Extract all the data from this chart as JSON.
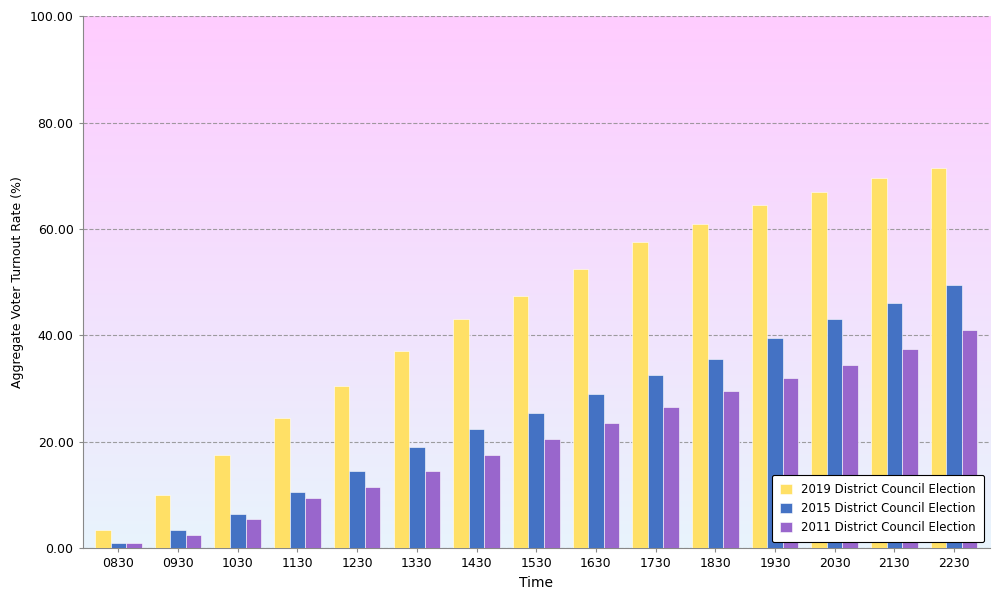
{
  "xlabel": "Time",
  "ylabel": "Aggregate Voter Turnout Rate (%)",
  "times": [
    "0830",
    "0930",
    "1030",
    "1130",
    "1230",
    "1330",
    "1430",
    "1530",
    "1630",
    "1730",
    "1830",
    "1930",
    "2030",
    "2130",
    "2230"
  ],
  "series_2019": [
    3.5,
    10.0,
    17.5,
    24.5,
    30.5,
    37.0,
    43.0,
    47.5,
    52.5,
    57.5,
    61.0,
    64.5,
    67.0,
    69.5,
    71.5
  ],
  "series_2015": [
    1.0,
    3.5,
    6.5,
    10.5,
    14.5,
    19.0,
    22.5,
    25.5,
    29.0,
    32.5,
    35.5,
    39.5,
    43.0,
    46.0,
    49.5
  ],
  "series_2011": [
    1.0,
    2.5,
    5.5,
    9.5,
    11.5,
    14.5,
    17.5,
    20.5,
    23.5,
    26.5,
    29.5,
    32.0,
    34.5,
    37.5,
    41.0
  ],
  "color_2019": "#FFE066",
  "color_2015": "#4472C4",
  "color_2011": "#9966CC",
  "ylim_min": 0.0,
  "ylim_max": 100.0,
  "yticks": [
    0.0,
    20.0,
    40.0,
    60.0,
    80.0,
    100.0
  ],
  "ytick_labels": [
    "0.00",
    "20.00",
    "40.00",
    "60.00",
    "80.00",
    "100.00"
  ],
  "bg_color_top": "#FFCCFF",
  "bg_color_bottom": "#E8F4FC",
  "bg_color_fig": "#FFFFFF",
  "legend_labels": [
    "2019 District Council Election",
    "2015 District Council Election",
    "2011 District Council Election"
  ],
  "grid_linestyle": "--",
  "grid_color": "#888888",
  "bar_width": 0.26
}
